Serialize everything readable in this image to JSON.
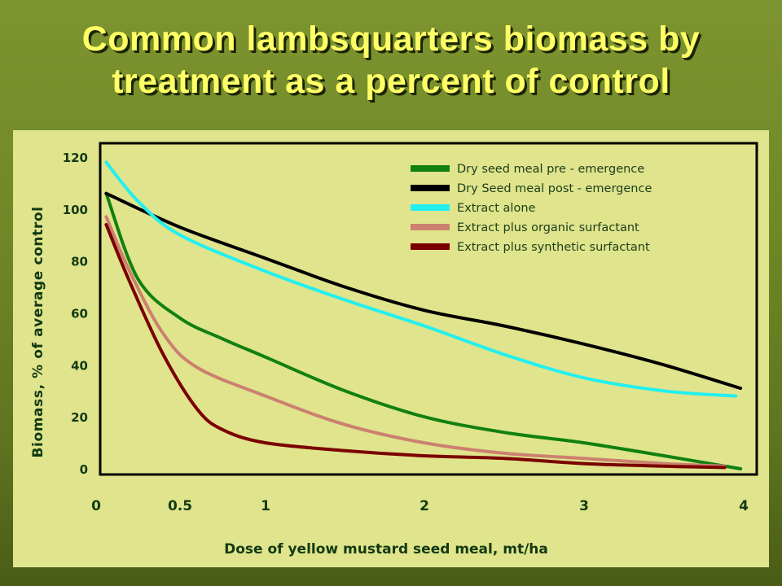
{
  "slide": {
    "title_line1": "Common lambsquarters biomass by",
    "title_line2": "treatment as a percent of control"
  },
  "chart_data": {
    "type": "line",
    "title": "Common lambsquarters biomass by treatment as a percent of control",
    "xlabel": "Dose of yellow mustard seed meal, mt/ha",
    "ylabel": "Biomass, % of average control",
    "xlim": [
      0,
      4
    ],
    "ylim": [
      0,
      120
    ],
    "x_ticks": [
      {
        "value": 0,
        "label": "0"
      },
      {
        "value": 0.5,
        "label": "0.5"
      },
      {
        "value": 1,
        "label": "1"
      },
      {
        "value": 2,
        "label": "2"
      },
      {
        "value": 3,
        "label": "3"
      },
      {
        "value": 4,
        "label": "4"
      }
    ],
    "y_ticks": [
      {
        "value": 0,
        "label": "0"
      },
      {
        "value": 20,
        "label": "20"
      },
      {
        "value": 40,
        "label": "40"
      },
      {
        "value": 60,
        "label": "60"
      },
      {
        "value": 80,
        "label": "80"
      },
      {
        "value": 100,
        "label": "100"
      },
      {
        "value": 120,
        "label": "120"
      }
    ],
    "grid": false,
    "legend_position": "top-right",
    "series": [
      {
        "name": "Dry seed meal pre - emergence",
        "color": "#118011",
        "points": [
          [
            0.06,
            106
          ],
          [
            0.25,
            73
          ],
          [
            0.5,
            58
          ],
          [
            0.75,
            50
          ],
          [
            1,
            43
          ],
          [
            1.5,
            30
          ],
          [
            2,
            20
          ],
          [
            2.5,
            14
          ],
          [
            3,
            10
          ],
          [
            3.5,
            5
          ],
          [
            3.98,
            0
          ]
        ]
      },
      {
        "name": "Dry Seed meal post - emergence",
        "color": "#000000",
        "points": [
          [
            0.06,
            106
          ],
          [
            0.5,
            93
          ],
          [
            1,
            81
          ],
          [
            1.5,
            70
          ],
          [
            2,
            61
          ],
          [
            2.5,
            55
          ],
          [
            3,
            48
          ],
          [
            3.5,
            40
          ],
          [
            3.98,
            31
          ]
        ]
      },
      {
        "name": "Extract alone",
        "color": "#22f0f0",
        "points": [
          [
            0.06,
            118
          ],
          [
            0.25,
            103
          ],
          [
            0.5,
            90
          ],
          [
            1,
            76
          ],
          [
            1.5,
            65
          ],
          [
            2,
            55
          ],
          [
            2.5,
            44
          ],
          [
            3,
            35
          ],
          [
            3.5,
            30
          ],
          [
            3.95,
            28
          ]
        ]
      },
      {
        "name": "Extract plus organic surfactant",
        "color": "#cc8070",
        "points": [
          [
            0.06,
            97
          ],
          [
            0.2,
            76
          ],
          [
            0.4,
            52
          ],
          [
            0.6,
            39
          ],
          [
            1,
            28
          ],
          [
            1.5,
            17
          ],
          [
            2,
            10
          ],
          [
            2.5,
            6
          ],
          [
            3,
            4
          ],
          [
            3.5,
            2
          ],
          [
            3.88,
            1
          ]
        ]
      },
      {
        "name": "Extract plus synthetic surfactant",
        "color": "#7a0000",
        "points": [
          [
            0.06,
            94
          ],
          [
            0.2,
            72
          ],
          [
            0.4,
            44
          ],
          [
            0.6,
            23
          ],
          [
            0.75,
            15
          ],
          [
            1,
            10
          ],
          [
            1.5,
            7
          ],
          [
            2,
            5
          ],
          [
            2.5,
            4
          ],
          [
            3,
            2
          ],
          [
            3.5,
            1
          ],
          [
            3.88,
            0.5
          ]
        ]
      }
    ]
  }
}
